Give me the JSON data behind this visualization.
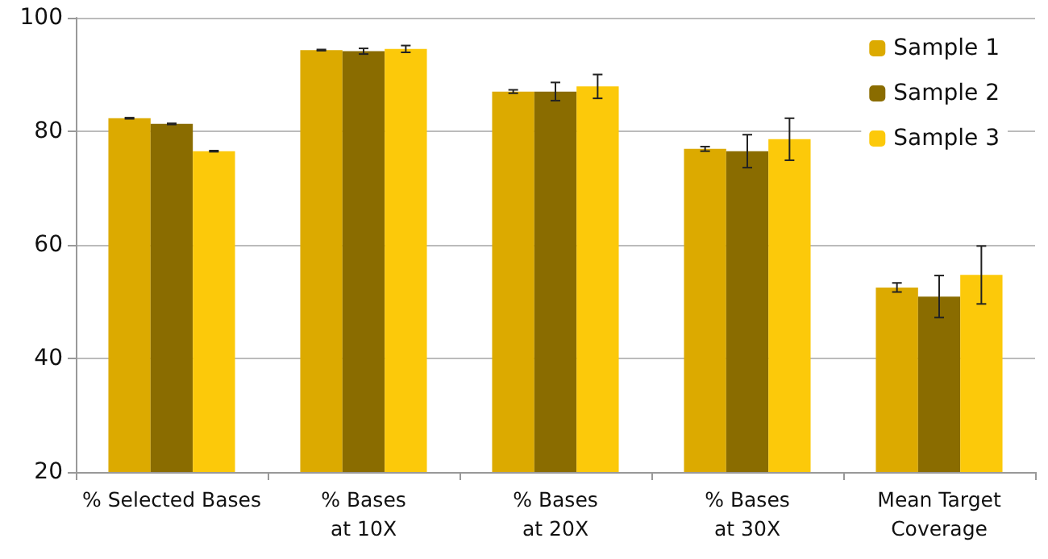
{
  "chart_data": {
    "type": "bar",
    "categories": [
      "% Selected Bases",
      "% Bases\nat 10X",
      "% Bases\nat 20X",
      "% Bases\nat 30X",
      "Mean Target\nCoverage"
    ],
    "series": [
      {
        "name": "Sample 1",
        "color": "#dcaa00",
        "values": [
          82.3,
          94.3,
          87.0,
          76.9,
          52.5
        ],
        "errors": [
          0.1,
          0.1,
          0.3,
          0.4,
          0.8
        ]
      },
      {
        "name": "Sample 2",
        "color": "#8a6c00",
        "values": [
          81.3,
          94.1,
          87.0,
          76.5,
          50.9
        ],
        "errors": [
          0.1,
          0.5,
          1.6,
          2.9,
          3.7
        ]
      },
      {
        "name": "Sample 3",
        "color": "#fcc90a",
        "values": [
          76.5,
          94.5,
          87.9,
          78.6,
          54.7
        ],
        "errors": [
          0.1,
          0.6,
          2.1,
          3.7,
          5.1
        ]
      }
    ],
    "ylim": [
      20,
      100
    ],
    "yticks": [
      20,
      40,
      60,
      80,
      100
    ],
    "grid": "y",
    "legend": "top right"
  }
}
